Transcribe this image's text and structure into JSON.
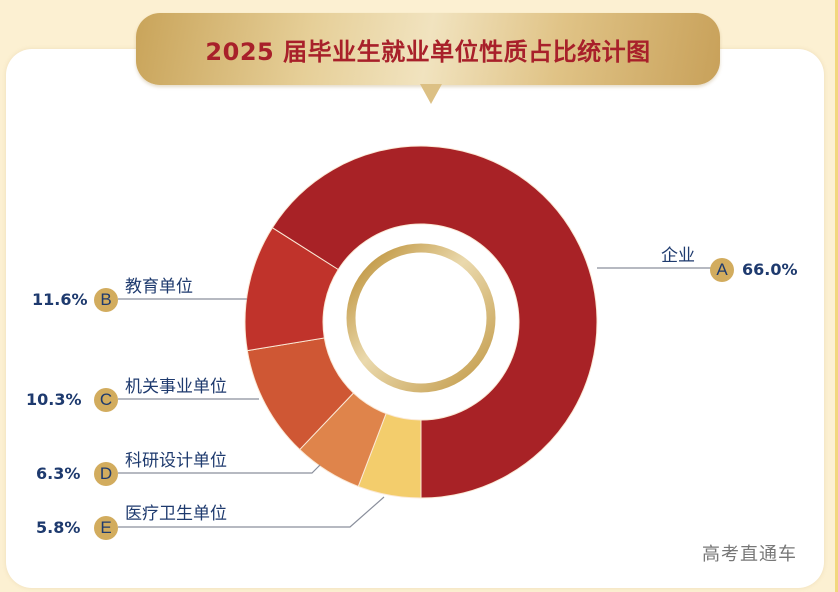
{
  "title": "2025 届毕业生就业单位性质占比统计图",
  "watermark": "高考直通车",
  "colors": {
    "A": "#a82226",
    "B": "#c0332b",
    "C": "#cf5734",
    "D": "#df844b",
    "E": "#f3cd6c",
    "label_text": "#1e3a6e",
    "badge": "#d2ac5e",
    "title_text": "#a8202a"
  },
  "items": [
    {
      "letter": "A",
      "name": "企业",
      "percent": "66.0%"
    },
    {
      "letter": "B",
      "name": "教育单位",
      "percent": "11.6%"
    },
    {
      "letter": "C",
      "name": "机关事业单位",
      "percent": "10.3%"
    },
    {
      "letter": "D",
      "name": "科研设计单位",
      "percent": "6.3%"
    },
    {
      "letter": "E",
      "name": "医疗卫生单位",
      "percent": "5.8%"
    }
  ],
  "chart_data": {
    "type": "pie",
    "subtype": "donut",
    "title": "2025 届毕业生就业单位性质占比统计图",
    "categories": [
      "企业",
      "教育单位",
      "机关事业单位",
      "科研设计单位",
      "医疗卫生单位"
    ],
    "letters": [
      "A",
      "B",
      "C",
      "D",
      "E"
    ],
    "values": [
      66.0,
      11.6,
      10.3,
      6.3,
      5.8
    ],
    "unit": "%",
    "colors": [
      "#a82226",
      "#c0332b",
      "#cf5734",
      "#df844b",
      "#f3cd6c"
    ],
    "legend": "leader-line labels with lettered badges",
    "start_angle": "6 o'clock, counter-clockwise for A"
  }
}
